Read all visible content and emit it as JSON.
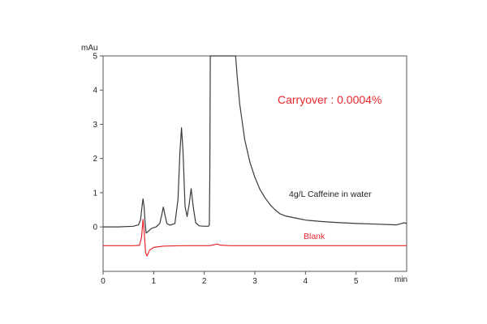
{
  "chart_data": {
    "type": "line",
    "title": "",
    "xlabel": "min",
    "ylabel": "mAu",
    "xlim": [
      0,
      6
    ],
    "ylim": [
      -1.3,
      5
    ],
    "x_ticks": [
      0,
      1,
      2,
      3,
      4,
      5
    ],
    "y_ticks": [
      0,
      1,
      2,
      3,
      4,
      5
    ],
    "grid": false,
    "annotations": {
      "carryover": "Carryover : 0.0004%",
      "sample": "4g/L Caffeine in water",
      "blank": "Blank"
    },
    "colors": {
      "sample": "#3a3a3a",
      "blank": "#e8262b",
      "carryover": "#e8262b"
    },
    "series": [
      {
        "key": "sample",
        "color": "#3a3a3a",
        "points": [
          [
            0.0,
            0.0
          ],
          [
            0.3,
            0.0
          ],
          [
            0.6,
            0.02
          ],
          [
            0.7,
            0.06
          ],
          [
            0.74,
            0.2
          ],
          [
            0.77,
            0.6
          ],
          [
            0.79,
            0.82
          ],
          [
            0.81,
            0.6
          ],
          [
            0.83,
            0.15
          ],
          [
            0.85,
            -0.18
          ],
          [
            0.88,
            -0.15
          ],
          [
            0.95,
            -0.05
          ],
          [
            1.05,
            0.0
          ],
          [
            1.12,
            0.1
          ],
          [
            1.16,
            0.35
          ],
          [
            1.19,
            0.58
          ],
          [
            1.22,
            0.38
          ],
          [
            1.26,
            0.1
          ],
          [
            1.32,
            0.05
          ],
          [
            1.42,
            0.1
          ],
          [
            1.48,
            0.8
          ],
          [
            1.52,
            2.2
          ],
          [
            1.55,
            2.9
          ],
          [
            1.58,
            2.2
          ],
          [
            1.62,
            0.6
          ],
          [
            1.66,
            0.3
          ],
          [
            1.7,
            0.65
          ],
          [
            1.74,
            1.12
          ],
          [
            1.78,
            0.6
          ],
          [
            1.83,
            0.12
          ],
          [
            1.9,
            0.03
          ],
          [
            2.0,
            0.02
          ],
          [
            2.08,
            0.02
          ],
          [
            2.1,
            0.05
          ],
          [
            2.11,
            1.5
          ],
          [
            2.12,
            5.0
          ],
          [
            2.62,
            5.0
          ],
          [
            2.65,
            4.4
          ],
          [
            2.7,
            3.6
          ],
          [
            2.8,
            2.55
          ],
          [
            2.9,
            1.9
          ],
          [
            3.0,
            1.45
          ],
          [
            3.1,
            1.1
          ],
          [
            3.2,
            0.85
          ],
          [
            3.3,
            0.65
          ],
          [
            3.4,
            0.5
          ],
          [
            3.5,
            0.38
          ],
          [
            3.6,
            0.32
          ],
          [
            3.8,
            0.26
          ],
          [
            4.0,
            0.2
          ],
          [
            4.3,
            0.16
          ],
          [
            4.6,
            0.13
          ],
          [
            5.0,
            0.1
          ],
          [
            5.4,
            0.08
          ],
          [
            5.8,
            0.06
          ],
          [
            5.9,
            0.1
          ],
          [
            5.95,
            0.12
          ],
          [
            6.0,
            0.1
          ]
        ]
      },
      {
        "key": "blank",
        "color": "#e8262b",
        "points": [
          [
            0.0,
            -0.55
          ],
          [
            0.6,
            -0.55
          ],
          [
            0.72,
            -0.54
          ],
          [
            0.76,
            -0.3
          ],
          [
            0.79,
            0.22
          ],
          [
            0.81,
            -0.1
          ],
          [
            0.84,
            -0.75
          ],
          [
            0.87,
            -0.85
          ],
          [
            0.92,
            -0.68
          ],
          [
            1.0,
            -0.6
          ],
          [
            1.2,
            -0.56
          ],
          [
            1.6,
            -0.55
          ],
          [
            2.1,
            -0.55
          ],
          [
            2.2,
            -0.52
          ],
          [
            2.26,
            -0.5
          ],
          [
            2.3,
            -0.53
          ],
          [
            2.5,
            -0.55
          ],
          [
            3.5,
            -0.55
          ],
          [
            5.0,
            -0.55
          ],
          [
            6.0,
            -0.55
          ]
        ]
      }
    ]
  }
}
